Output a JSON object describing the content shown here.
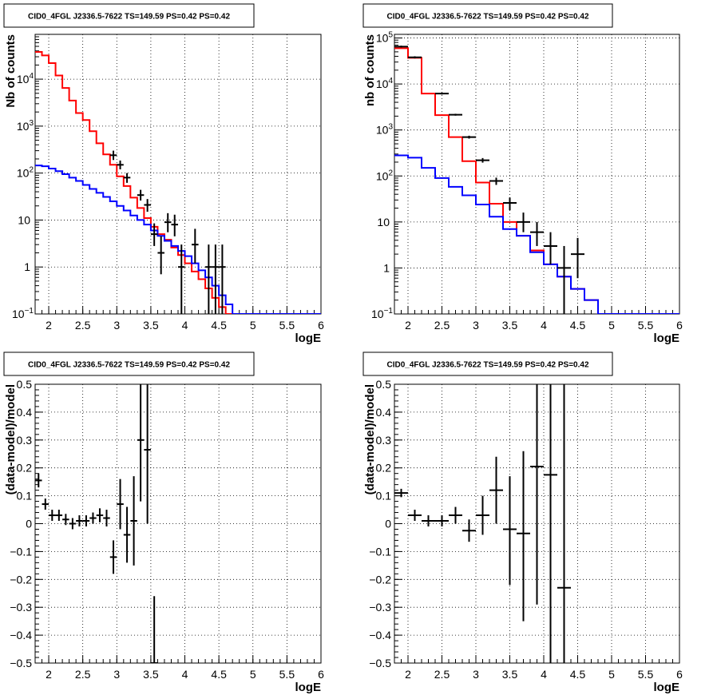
{
  "chart_data": [
    {
      "type": "line",
      "title": "CID0_4FGL J2336.5-7622 TS=149.59 PS=0.42 PS=0.42",
      "xlabel": "logE",
      "ylabel": "Nb of counts",
      "xlim": [
        1.8,
        6.0
      ],
      "ylim": [
        0.1,
        90000
      ],
      "yscale": "log",
      "grid": true,
      "x_ticks": [
        "2",
        "2.5",
        "3",
        "3.5",
        "4",
        "4.5",
        "5",
        "5.5",
        "6"
      ],
      "y_ticks": [
        "10^-1",
        "1",
        "10",
        "10^2",
        "10^3",
        "10^4"
      ],
      "bin_edges": [
        1.8,
        1.9,
        2.0,
        2.1,
        2.2,
        2.3,
        2.4,
        2.5,
        2.6,
        2.7,
        2.8,
        2.9,
        3.0,
        3.1,
        3.2,
        3.3,
        3.4,
        3.5,
        3.6,
        3.7,
        3.8,
        3.9,
        4.0,
        4.1,
        4.2,
        4.3,
        4.4,
        4.5,
        4.6,
        4.7,
        4.8,
        4.9,
        5.0,
        5.1,
        5.2,
        5.3,
        5.4,
        5.5,
        5.6,
        5.7,
        5.8,
        5.9,
        6.0
      ],
      "series": [
        {
          "color": "#ff0000",
          "style": "step",
          "values": [
            38000,
            32000,
            22000,
            12000,
            6500,
            3500,
            1900,
            1350,
            780,
            430,
            250,
            150,
            85,
            53,
            30,
            18,
            11,
            7.2,
            5,
            3.8,
            2.6,
            1.8,
            1.2,
            0.8,
            0.55,
            0.35,
            0.22,
            0.14,
            0.1,
            0.1,
            0.1,
            0.1,
            0.1,
            0.1,
            0.1,
            0.1,
            0.1,
            0.1,
            0.1,
            0.1,
            0.1,
            0.1
          ]
        },
        {
          "color": "#0000ff",
          "style": "step",
          "values": [
            145,
            140,
            125,
            110,
            95,
            80,
            68,
            56,
            46,
            38,
            31,
            25,
            20,
            16,
            12.5,
            10,
            8,
            6,
            4.6,
            3.6,
            2.8,
            2.2,
            1.7,
            1.2,
            0.85,
            0.6,
            0.4,
            0.25,
            0.16,
            0.1,
            0.1,
            0.1,
            0.1,
            0.1,
            0.1,
            0.1,
            0.1,
            0.1,
            0.1,
            0.1,
            0.1,
            0.1
          ]
        },
        {
          "color": "#000000",
          "style": "errorbar",
          "points": [
            [
              2.95,
              240,
              190,
              300
            ],
            [
              3.05,
              150,
              120,
              185
            ],
            [
              3.15,
              80,
              62,
              100
            ],
            [
              3.35,
              34,
              26,
              44
            ],
            [
              3.45,
              21,
              15,
              28
            ],
            [
              3.55,
              5,
              2.8,
              8.5
            ],
            [
              3.65,
              2,
              0.7,
              4.5
            ],
            [
              3.75,
              9,
              5.5,
              14
            ],
            [
              3.85,
              8,
              4.5,
              13
            ],
            [
              3.95,
              1,
              0.1,
              3
            ],
            [
              4.15,
              3,
              1.2,
              6.5
            ],
            [
              4.35,
              1,
              0.1,
              3
            ],
            [
              4.45,
              1,
              0.1,
              3
            ],
            [
              4.55,
              1,
              0.1,
              3
            ]
          ]
        }
      ]
    },
    {
      "type": "line",
      "title": "CID0_4FGL J2336.5-7622 TS=149.59 PS=0.42 PS=0.42",
      "xlabel": "logE",
      "ylabel": "nb of counts",
      "xlim": [
        1.8,
        6.0
      ],
      "ylim": [
        0.1,
        120000
      ],
      "yscale": "log",
      "grid": true,
      "x_ticks": [
        "2",
        "2.5",
        "3",
        "3.5",
        "4",
        "4.5",
        "5",
        "5.5",
        "6"
      ],
      "y_ticks": [
        "10^-1",
        "1",
        "10",
        "10^2",
        "10^3",
        "10^4",
        "10^5"
      ],
      "bin_edges": [
        1.8,
        2.0,
        2.2,
        2.4,
        2.6,
        2.8,
        3.0,
        3.2,
        3.4,
        3.6,
        3.8,
        4.0,
        4.2,
        4.4,
        4.6,
        4.8,
        5.0,
        5.2,
        5.4,
        5.6,
        5.8,
        6.0
      ],
      "series": [
        {
          "color": "#ff0000",
          "style": "step",
          "values": [
            60000,
            37000,
            6200,
            2100,
            700,
            210,
            72,
            25,
            10,
            5,
            2.4,
            1.2,
            0.65,
            0.35,
            0.2,
            0.1,
            0.1,
            0.1,
            0.1,
            0.1,
            0.1
          ]
        },
        {
          "color": "#0000ff",
          "style": "step",
          "values": [
            280,
            250,
            150,
            90,
            58,
            38,
            24,
            13,
            7,
            5,
            2.2,
            1.2,
            0.65,
            0.35,
            0.2,
            0.1,
            0.1,
            0.1,
            0.1,
            0.1,
            0.1
          ]
        },
        {
          "color": "#000000",
          "style": "errorbar",
          "points": [
            [
              1.9,
              65000,
              62000,
              68000
            ],
            [
              2.1,
              38000,
              36000,
              40000
            ],
            [
              2.5,
              6200,
              5900,
              6500
            ],
            [
              2.7,
              2150,
              2050,
              2250
            ],
            [
              2.9,
              700,
              650,
              750
            ],
            [
              3.1,
              220,
              195,
              245
            ],
            [
              3.3,
              78,
              64,
              92
            ],
            [
              3.5,
              26,
              18,
              34
            ],
            [
              3.7,
              10,
              6,
              16
            ],
            [
              3.9,
              6,
              3,
              10
            ],
            [
              4.1,
              3,
              1.2,
              6
            ],
            [
              4.3,
              1,
              0.1,
              3
            ],
            [
              4.5,
              2,
              0.6,
              4.5
            ]
          ]
        }
      ]
    },
    {
      "type": "scatter",
      "title": "CID0_4FGL J2336.5-7622 TS=149.59 PS=0.42 PS=0.42",
      "xlabel": "logE",
      "ylabel": "(data-model)/model",
      "xlim": [
        1.8,
        6.0
      ],
      "ylim": [
        -0.5,
        0.5
      ],
      "grid": true,
      "x_ticks": [
        "2",
        "2.5",
        "3",
        "3.5",
        "4",
        "4.5",
        "5",
        "5.5",
        "6"
      ],
      "y_ticks": [
        "-0.5",
        "-0.4",
        "-0.3",
        "-0.2",
        "-0.1",
        "0",
        "0.1",
        "0.2",
        "0.3",
        "0.4",
        "0.5"
      ],
      "bin_halfwidth": 0.05,
      "points": [
        [
          1.85,
          0.155,
          0.13,
          0.18
        ],
        [
          1.95,
          0.07,
          0.05,
          0.09
        ],
        [
          2.05,
          0.03,
          0.01,
          0.05
        ],
        [
          2.15,
          0.03,
          0.01,
          0.05
        ],
        [
          2.25,
          0.015,
          -0.005,
          0.035
        ],
        [
          2.35,
          0.0,
          -0.02,
          0.02
        ],
        [
          2.45,
          0.01,
          -0.01,
          0.03
        ],
        [
          2.55,
          0.01,
          -0.01,
          0.03
        ],
        [
          2.65,
          0.02,
          0.0,
          0.04
        ],
        [
          2.75,
          0.03,
          0.005,
          0.055
        ],
        [
          2.85,
          0.02,
          -0.01,
          0.05
        ],
        [
          2.95,
          -0.12,
          -0.18,
          -0.06
        ],
        [
          3.05,
          0.07,
          -0.02,
          0.16
        ],
        [
          3.15,
          -0.04,
          -0.14,
          0.06
        ],
        [
          3.25,
          0.01,
          -0.15,
          0.17
        ],
        [
          3.35,
          0.3,
          0.08,
          0.5
        ],
        [
          3.45,
          0.265,
          0.0,
          0.5
        ],
        [
          3.55,
          -0.5,
          -0.5,
          -0.26
        ]
      ]
    },
    {
      "type": "scatter",
      "title": "CID0_4FGL J2336.5-7622 TS=149.59 PS=0.42 PS=0.42",
      "xlabel": "logE",
      "ylabel": "(data-model)/model",
      "xlim": [
        1.8,
        6.0
      ],
      "ylim": [
        -0.5,
        0.5
      ],
      "grid": true,
      "x_ticks": [
        "2",
        "2.5",
        "3",
        "3.5",
        "4",
        "4.5",
        "5",
        "5.5",
        "6"
      ],
      "y_ticks": [
        "-0.5",
        "-0.4",
        "-0.3",
        "-0.2",
        "-0.1",
        "0",
        "0.1",
        "0.2",
        "0.3",
        "0.4",
        "0.5"
      ],
      "bin_halfwidth": 0.1,
      "points": [
        [
          1.9,
          0.11,
          0.095,
          0.125
        ],
        [
          2.1,
          0.03,
          0.01,
          0.05
        ],
        [
          2.3,
          0.01,
          -0.01,
          0.03
        ],
        [
          2.5,
          0.01,
          -0.01,
          0.03
        ],
        [
          2.7,
          0.03,
          0.0,
          0.06
        ],
        [
          2.9,
          -0.025,
          -0.065,
          0.015
        ],
        [
          3.1,
          0.03,
          -0.04,
          0.1
        ],
        [
          3.3,
          0.12,
          0.0,
          0.24
        ],
        [
          3.5,
          -0.02,
          -0.22,
          0.17
        ],
        [
          3.7,
          -0.035,
          -0.35,
          0.26
        ],
        [
          3.9,
          0.205,
          -0.29,
          0.5
        ],
        [
          4.1,
          0.175,
          -0.5,
          0.5
        ],
        [
          4.3,
          -0.23,
          -0.5,
          0.5
        ]
      ]
    }
  ]
}
